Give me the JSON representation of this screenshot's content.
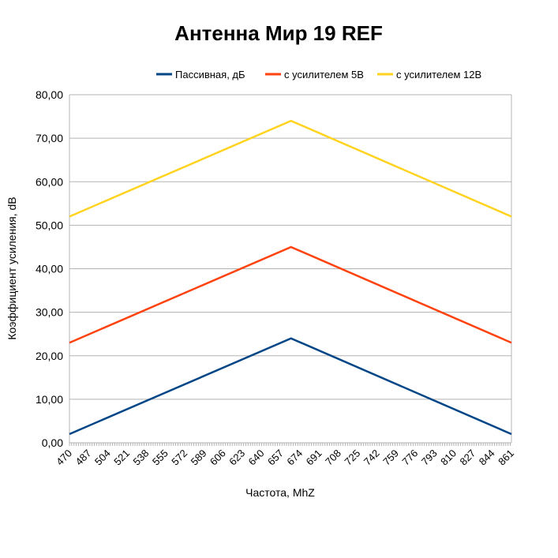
{
  "chart_data": {
    "type": "line",
    "title": "Антенна Мир 19 REF",
    "xlabel": "Частота, MhZ",
    "ylabel": "Коэффициент усиления, dB",
    "xlim": [
      470,
      861
    ],
    "ylim": [
      0,
      80
    ],
    "y_ticks": [
      "0,00",
      "10,00",
      "20,00",
      "30,00",
      "40,00",
      "50,00",
      "60,00",
      "70,00",
      "80,00"
    ],
    "y_tick_values": [
      0,
      10,
      20,
      30,
      40,
      50,
      60,
      70,
      80
    ],
    "x_ticks": [
      "470",
      "487",
      "504",
      "521",
      "538",
      "555",
      "572",
      "589",
      "606",
      "623",
      "640",
      "657",
      "674",
      "691",
      "708",
      "725",
      "742",
      "759",
      "776",
      "793",
      "810",
      "827",
      "844",
      "861"
    ],
    "grid": "horizontal",
    "legend_position": "top",
    "series": [
      {
        "name": "Пассивная, дБ",
        "color": "#004586",
        "x": [
          470,
          666,
          861
        ],
        "values": [
          2,
          24,
          2
        ]
      },
      {
        "name": "с усилителем 5В",
        "color": "#ff420e",
        "x": [
          470,
          666,
          861
        ],
        "values": [
          23,
          45,
          23
        ]
      },
      {
        "name": "с усилителем 12В",
        "color": "#ffd320",
        "x": [
          470,
          666,
          861
        ],
        "values": [
          52,
          74,
          52
        ]
      }
    ]
  }
}
